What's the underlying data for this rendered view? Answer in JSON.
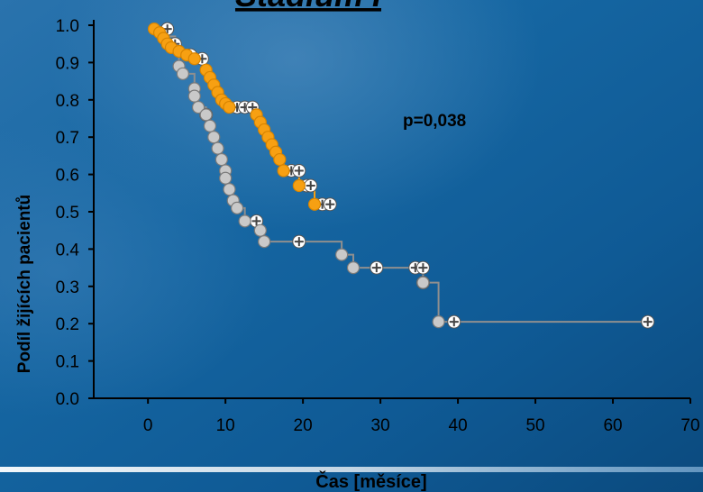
{
  "chart_data": {
    "type": "line",
    "title": "Stadium I",
    "xlabel": "Čas [měsíce]",
    "ylabel": "Podíl žijících pacientů",
    "annotation": "p=0,038",
    "xlim": [
      -7,
      70
    ],
    "ylim": [
      0,
      1
    ],
    "x_ticks": [
      0,
      10,
      20,
      30,
      40,
      50,
      60,
      70
    ],
    "y_ticks": [
      "0.0",
      "0.1",
      "0.2",
      "0.3",
      "0.4",
      "0.5",
      "0.6",
      "0.7",
      "0.8",
      "0.9",
      "1.0"
    ],
    "grid": false,
    "series": [
      {
        "color": "#f7a012",
        "step": [
          [
            0.8,
            0.99
          ],
          [
            1.5,
            0.98
          ],
          [
            2.0,
            0.965
          ],
          [
            2.5,
            0.95
          ],
          [
            3.0,
            0.94
          ],
          [
            4.0,
            0.93
          ],
          [
            5.0,
            0.92
          ],
          [
            6.0,
            0.91
          ],
          [
            7.5,
            0.88
          ],
          [
            8.0,
            0.86
          ],
          [
            8.5,
            0.84
          ],
          [
            9.0,
            0.82
          ],
          [
            9.5,
            0.8
          ],
          [
            10.0,
            0.79
          ],
          [
            10.5,
            0.78
          ],
          [
            14.0,
            0.76
          ],
          [
            14.5,
            0.74
          ],
          [
            15.0,
            0.72
          ],
          [
            15.5,
            0.7
          ],
          [
            16.0,
            0.68
          ],
          [
            16.5,
            0.66
          ],
          [
            17.0,
            0.64
          ],
          [
            17.5,
            0.61
          ],
          [
            19.5,
            0.57
          ],
          [
            21.5,
            0.52
          ],
          [
            24.0,
            0.52
          ]
        ],
        "events": [
          [
            0.8,
            0.99
          ],
          [
            1.5,
            0.98
          ],
          [
            2.0,
            0.965
          ],
          [
            2.5,
            0.95
          ],
          [
            3.0,
            0.94
          ],
          [
            4.0,
            0.93
          ],
          [
            5.0,
            0.92
          ],
          [
            6.0,
            0.91
          ],
          [
            7.5,
            0.88
          ],
          [
            8.0,
            0.86
          ],
          [
            8.5,
            0.84
          ],
          [
            9.0,
            0.82
          ],
          [
            9.5,
            0.8
          ],
          [
            10.0,
            0.79
          ],
          [
            10.5,
            0.78
          ],
          [
            14.0,
            0.76
          ],
          [
            14.5,
            0.74
          ],
          [
            15.0,
            0.72
          ],
          [
            15.5,
            0.7
          ],
          [
            16.0,
            0.68
          ],
          [
            16.5,
            0.66
          ],
          [
            17.0,
            0.64
          ],
          [
            17.5,
            0.61
          ],
          [
            19.5,
            0.57
          ],
          [
            21.5,
            0.52
          ]
        ],
        "censored": [
          [
            2.5,
            0.99
          ],
          [
            3.5,
            0.95
          ],
          [
            5.5,
            0.92
          ],
          [
            7.0,
            0.91
          ],
          [
            11.5,
            0.78
          ],
          [
            12.5,
            0.78
          ],
          [
            13.5,
            0.78
          ],
          [
            18.5,
            0.61
          ],
          [
            19.5,
            0.61
          ],
          [
            20.5,
            0.57
          ],
          [
            21.0,
            0.57
          ],
          [
            22.5,
            0.52
          ],
          [
            23.5,
            0.52
          ]
        ]
      },
      {
        "color": "#b8b8b8",
        "step": [
          [
            2.5,
            0.97
          ],
          [
            3.5,
            0.94
          ],
          [
            4.0,
            0.89
          ],
          [
            4.5,
            0.87
          ],
          [
            6.0,
            0.83
          ],
          [
            6.0,
            0.81
          ],
          [
            6.5,
            0.78
          ],
          [
            7.5,
            0.76
          ],
          [
            8.0,
            0.73
          ],
          [
            8.5,
            0.7
          ],
          [
            9.0,
            0.67
          ],
          [
            9.5,
            0.64
          ],
          [
            10.0,
            0.61
          ],
          [
            10.0,
            0.59
          ],
          [
            10.5,
            0.56
          ],
          [
            11.0,
            0.53
          ],
          [
            11.5,
            0.51
          ],
          [
            12.5,
            0.475
          ],
          [
            14.5,
            0.45
          ],
          [
            15.0,
            0.42
          ],
          [
            25.0,
            0.385
          ],
          [
            26.5,
            0.35
          ],
          [
            35.5,
            0.31
          ],
          [
            37.5,
            0.205
          ],
          [
            65.0,
            0.205
          ]
        ],
        "events": [
          [
            4.0,
            0.89
          ],
          [
            4.5,
            0.87
          ],
          [
            6.0,
            0.83
          ],
          [
            6.0,
            0.81
          ],
          [
            6.5,
            0.78
          ],
          [
            7.5,
            0.76
          ],
          [
            8.0,
            0.73
          ],
          [
            8.5,
            0.7
          ],
          [
            9.0,
            0.67
          ],
          [
            9.5,
            0.64
          ],
          [
            10.0,
            0.61
          ],
          [
            10.0,
            0.59
          ],
          [
            10.5,
            0.56
          ],
          [
            11.0,
            0.53
          ],
          [
            11.5,
            0.51
          ],
          [
            12.5,
            0.475
          ],
          [
            14.5,
            0.45
          ],
          [
            15.0,
            0.42
          ],
          [
            25.0,
            0.385
          ],
          [
            26.5,
            0.35
          ],
          [
            35.5,
            0.31
          ],
          [
            37.5,
            0.205
          ]
        ],
        "censored": [
          [
            2.5,
            0.99
          ],
          [
            7.5,
            0.76
          ],
          [
            14.0,
            0.475
          ],
          [
            19.5,
            0.42
          ],
          [
            29.5,
            0.35
          ],
          [
            34.5,
            0.35
          ],
          [
            35.5,
            0.35
          ],
          [
            35.5,
            0.31
          ],
          [
            39.5,
            0.205
          ],
          [
            64.5,
            0.205
          ]
        ]
      }
    ]
  }
}
